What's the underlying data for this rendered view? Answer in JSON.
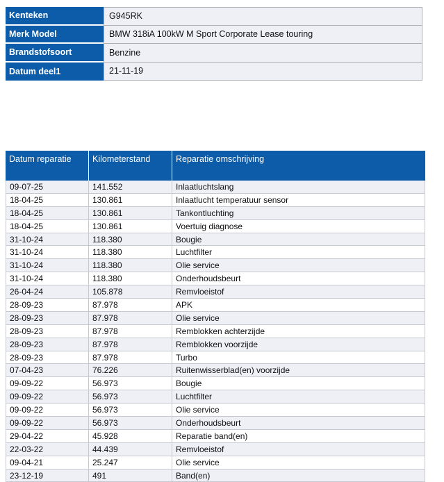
{
  "colors": {
    "header_blue": "#0c5caa",
    "stripe_bg": "#eef0f6",
    "row_border": "#c6c9d1",
    "info_border": "#a9adb6",
    "text": "#101014"
  },
  "info_table": {
    "rows": [
      {
        "label": "Kenteken",
        "value": "G945RK"
      },
      {
        "label": "Merk Model",
        "value": "BMW 318iA 100kW M Sport Corporate Lease touring"
      },
      {
        "label": "Brandstofsoort",
        "value": "Benzine"
      },
      {
        "label": "Datum deel1",
        "value": "21-11-19"
      }
    ]
  },
  "repair_table": {
    "columns": [
      "Datum reparatie",
      "Kilometerstand",
      "Reparatie omschrijving"
    ],
    "rows": [
      {
        "date": "09-07-25",
        "km": "141.552",
        "desc": "Inlaatluchtslang"
      },
      {
        "date": "18-04-25",
        "km": "130.861",
        "desc": "Inlaatlucht temperatuur sensor"
      },
      {
        "date": "18-04-25",
        "km": "130.861",
        "desc": "Tankontluchting"
      },
      {
        "date": "18-04-25",
        "km": "130.861",
        "desc": "Voertuig diagnose"
      },
      {
        "date": "31-10-24",
        "km": "118.380",
        "desc": "Bougie"
      },
      {
        "date": "31-10-24",
        "km": "118.380",
        "desc": "Luchtfilter"
      },
      {
        "date": "31-10-24",
        "km": "118.380",
        "desc": "Olie service"
      },
      {
        "date": "31-10-24",
        "km": "118.380",
        "desc": "Onderhoudsbeurt"
      },
      {
        "date": "26-04-24",
        "km": "105.878",
        "desc": "Remvloeistof"
      },
      {
        "date": "28-09-23",
        "km": "87.978",
        "desc": "APK"
      },
      {
        "date": "28-09-23",
        "km": "87.978",
        "desc": "Olie service"
      },
      {
        "date": "28-09-23",
        "km": "87.978",
        "desc": "Remblokken achterzijde"
      },
      {
        "date": "28-09-23",
        "km": "87.978",
        "desc": "Remblokken voorzijde"
      },
      {
        "date": "28-09-23",
        "km": "87.978",
        "desc": "Turbo"
      },
      {
        "date": "07-04-23",
        "km": "76.226",
        "desc": "Ruitenwisserblad(en) voorzijde"
      },
      {
        "date": "09-09-22",
        "km": "56.973",
        "desc": "Bougie"
      },
      {
        "date": "09-09-22",
        "km": "56.973",
        "desc": "Luchtfilter"
      },
      {
        "date": "09-09-22",
        "km": "56.973",
        "desc": "Olie service"
      },
      {
        "date": "09-09-22",
        "km": "56.973",
        "desc": "Onderhoudsbeurt"
      },
      {
        "date": "29-04-22",
        "km": "45.928",
        "desc": "Reparatie band(en)"
      },
      {
        "date": "22-03-22",
        "km": "44.439",
        "desc": "Remvloeistof"
      },
      {
        "date": "09-04-21",
        "km": "25.247",
        "desc": "Olie service"
      },
      {
        "date": "23-12-19",
        "km": "491",
        "desc": "Band(en)"
      }
    ]
  }
}
